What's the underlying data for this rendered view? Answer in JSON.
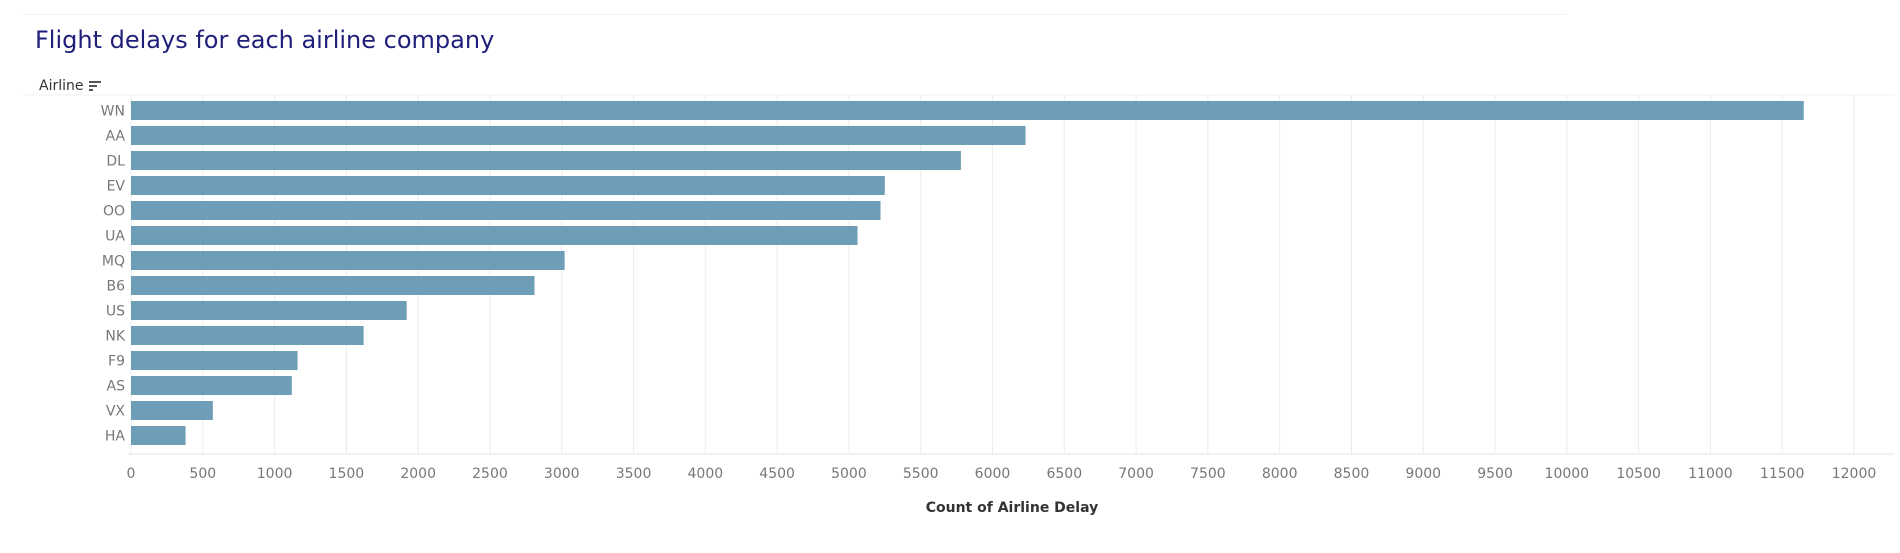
{
  "title": "Flight delays for each airline company",
  "y_header": "Airline",
  "icons": {
    "sort": "sort-descending-icon"
  },
  "colors": {
    "bar": "#6e9eb7",
    "title": "#1f1f7a",
    "grid": "#ececec",
    "axis_text": "#777777"
  },
  "chart_data": {
    "type": "bar",
    "orientation": "horizontal",
    "title": "Flight delays for each airline company",
    "ylabel": "Airline",
    "xlabel": "Count of Airline Delay",
    "categories": [
      "WN",
      "AA",
      "DL",
      "EV",
      "OO",
      "UA",
      "MQ",
      "B6",
      "US",
      "NK",
      "F9",
      "AS",
      "VX",
      "HA"
    ],
    "values": [
      11650,
      6230,
      5780,
      5250,
      5220,
      5060,
      3020,
      2810,
      1920,
      1620,
      1160,
      1120,
      570,
      380
    ],
    "xlim": [
      0,
      12000
    ],
    "xticks": [
      0,
      500,
      1000,
      1500,
      2000,
      2500,
      3000,
      3500,
      4000,
      4500,
      5000,
      5500,
      6000,
      6500,
      7000,
      7500,
      8000,
      8500,
      9000,
      9500,
      10000,
      10500,
      11000,
      11500,
      12000
    ],
    "grid": true,
    "legend": "none"
  }
}
